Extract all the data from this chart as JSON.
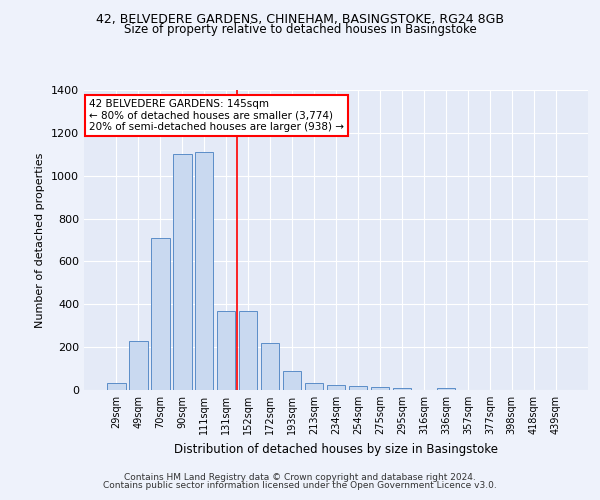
{
  "title1": "42, BELVEDERE GARDENS, CHINEHAM, BASINGSTOKE, RG24 8GB",
  "title2": "Size of property relative to detached houses in Basingstoke",
  "xlabel": "Distribution of detached houses by size in Basingstoke",
  "ylabel": "Number of detached properties",
  "categories": [
    "29sqm",
    "49sqm",
    "70sqm",
    "90sqm",
    "111sqm",
    "131sqm",
    "152sqm",
    "172sqm",
    "193sqm",
    "213sqm",
    "234sqm",
    "254sqm",
    "275sqm",
    "295sqm",
    "316sqm",
    "336sqm",
    "357sqm",
    "377sqm",
    "398sqm",
    "418sqm",
    "439sqm"
  ],
  "values": [
    35,
    230,
    710,
    1100,
    1110,
    370,
    370,
    220,
    90,
    35,
    22,
    18,
    12,
    8,
    0,
    10,
    0,
    0,
    0,
    0,
    0
  ],
  "bar_color": "#c9d9f0",
  "bar_edge_color": "#5b8dc8",
  "vline_x_index": 5.5,
  "vline_color": "red",
  "annotation_text": "42 BELVEDERE GARDENS: 145sqm\n← 80% of detached houses are smaller (3,774)\n20% of semi-detached houses are larger (938) →",
  "ylim": [
    0,
    1400
  ],
  "yticks": [
    0,
    200,
    400,
    600,
    800,
    1000,
    1200,
    1400
  ],
  "footer1": "Contains HM Land Registry data © Crown copyright and database right 2024.",
  "footer2": "Contains public sector information licensed under the Open Government Licence v3.0.",
  "bg_color": "#eef2fb",
  "plot_bg_color": "#e4eaf7"
}
